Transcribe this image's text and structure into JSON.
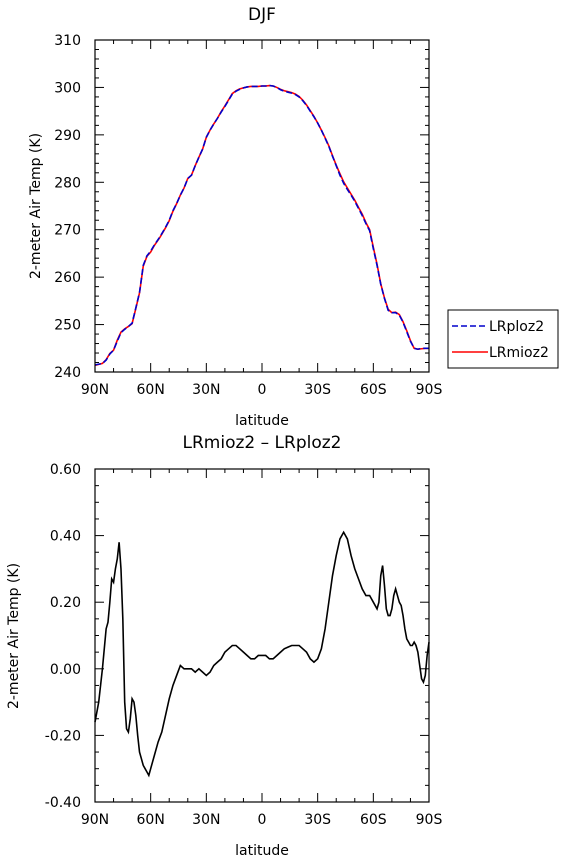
{
  "chart_data": [
    {
      "type": "line",
      "title": "DJF",
      "xlabel": "latitude",
      "ylabel": "2-meter Air Temp (K)",
      "xlim": [
        -90,
        90
      ],
      "ylim": [
        240,
        310
      ],
      "x_ticks": [
        -90,
        -60,
        -30,
        0,
        30,
        60,
        90
      ],
      "x_tick_labels": [
        "90N",
        "60N",
        "30N",
        "0",
        "30S",
        "60S",
        "90S"
      ],
      "y_ticks": [
        240,
        250,
        260,
        270,
        280,
        290,
        300,
        310
      ],
      "y_tick_labels": [
        "240",
        "250",
        "260",
        "270",
        "280",
        "290",
        "300",
        "310"
      ],
      "legend_position": "right",
      "series": [
        {
          "name": "LRploz2",
          "color": "#0000cc",
          "style": "dashed",
          "x": [
            -90,
            -86,
            -84,
            -82,
            -80,
            -78,
            -76,
            -74,
            -72,
            -70,
            -68,
            -66,
            -64,
            -62,
            -60,
            -58,
            -55,
            -52,
            -50,
            -48,
            -46,
            -44,
            -42,
            -40,
            -38,
            -36,
            -34,
            -32,
            -30,
            -28,
            -26,
            -24,
            -22,
            -20,
            -18,
            -16,
            -14,
            -12,
            -10,
            -8,
            -6,
            -4,
            -2,
            0,
            2,
            4,
            6,
            8,
            10,
            12,
            14,
            16,
            18,
            20,
            22,
            24,
            26,
            28,
            30,
            32,
            34,
            36,
            38,
            40,
            42,
            44,
            46,
            48,
            50,
            52,
            54,
            56,
            58,
            60,
            62,
            64,
            66,
            68,
            70,
            72,
            74,
            76,
            78,
            80,
            82,
            84,
            86,
            88,
            90
          ],
          "y": [
            241.5,
            241.8,
            242.5,
            243.8,
            244.6,
            246.5,
            248.3,
            249.0,
            249.6,
            250.3,
            253.5,
            256.8,
            262.5,
            264.5,
            265.5,
            266.8,
            268.5,
            270.5,
            272.0,
            274.0,
            275.5,
            277.3,
            278.8,
            280.8,
            281.5,
            283.5,
            285.3,
            287.0,
            289.5,
            291.0,
            292.3,
            293.5,
            294.8,
            296.0,
            297.3,
            298.6,
            299.2,
            299.6,
            299.9,
            300.1,
            300.2,
            300.2,
            300.2,
            300.3,
            300.3,
            300.4,
            300.3,
            300.0,
            299.5,
            299.2,
            299.0,
            298.8,
            298.5,
            298.0,
            297.2,
            296.2,
            295.0,
            293.8,
            292.5,
            291.0,
            289.3,
            287.6,
            285.5,
            283.5,
            281.5,
            279.8,
            278.5,
            277.3,
            276.0,
            274.5,
            273.0,
            271.3,
            269.8,
            266.0,
            262.5,
            258.5,
            255.5,
            253.0,
            252.5,
            252.5,
            252.0,
            250.5,
            248.5,
            246.5,
            245.0,
            244.8,
            245.0,
            245.0,
            245.0
          ]
        },
        {
          "name": "LRmioz2",
          "color": "#ff0000",
          "style": "solid",
          "x": [
            -90,
            -86,
            -84,
            -82,
            -80,
            -78,
            -76,
            -74,
            -72,
            -70,
            -68,
            -66,
            -64,
            -62,
            -60,
            -58,
            -55,
            -52,
            -50,
            -48,
            -46,
            -44,
            -42,
            -40,
            -38,
            -36,
            -34,
            -32,
            -30,
            -28,
            -26,
            -24,
            -22,
            -20,
            -18,
            -16,
            -14,
            -12,
            -10,
            -8,
            -6,
            -4,
            -2,
            0,
            2,
            4,
            6,
            8,
            10,
            12,
            14,
            16,
            18,
            20,
            22,
            24,
            26,
            28,
            30,
            32,
            34,
            36,
            38,
            40,
            42,
            44,
            46,
            48,
            50,
            52,
            54,
            56,
            58,
            60,
            62,
            64,
            66,
            68,
            70,
            72,
            74,
            76,
            78,
            80,
            82,
            84,
            86,
            88,
            90
          ],
          "y": [
            241.4,
            241.8,
            242.6,
            243.9,
            244.6,
            246.7,
            248.4,
            249.1,
            249.6,
            250.2,
            253.4,
            256.7,
            262.3,
            264.4,
            265.3,
            266.7,
            268.4,
            270.4,
            271.9,
            273.9,
            275.5,
            277.3,
            278.8,
            280.8,
            281.5,
            283.5,
            285.3,
            287.0,
            289.5,
            291.0,
            292.3,
            293.5,
            294.9,
            296.1,
            297.4,
            298.7,
            299.3,
            299.7,
            299.9,
            300.1,
            300.2,
            300.2,
            300.2,
            300.3,
            300.3,
            300.4,
            300.3,
            300.0,
            299.6,
            299.3,
            299.1,
            298.9,
            298.6,
            298.1,
            297.3,
            296.3,
            295.1,
            293.9,
            292.5,
            291.0,
            289.4,
            287.7,
            285.6,
            283.6,
            281.8,
            280.1,
            278.8,
            277.5,
            276.2,
            274.7,
            273.3,
            271.5,
            270.0,
            266.3,
            262.7,
            258.6,
            255.6,
            253.2,
            252.5,
            252.6,
            252.1,
            250.6,
            248.7,
            246.6,
            245.0,
            244.8,
            244.9,
            245.0,
            245.0
          ]
        }
      ]
    },
    {
      "type": "line",
      "title": "LRmioz2 – LRploz2",
      "xlabel": "latitude",
      "ylabel": "2-meter Air Temp (K)",
      "xlim": [
        -90,
        90
      ],
      "ylim": [
        -0.4,
        0.6
      ],
      "x_ticks": [
        -90,
        -60,
        -30,
        0,
        30,
        60,
        90
      ],
      "x_tick_labels": [
        "90N",
        "60N",
        "30N",
        "0",
        "30S",
        "60S",
        "90S"
      ],
      "y_ticks": [
        -0.4,
        -0.2,
        0.0,
        0.2,
        0.4,
        0.6
      ],
      "y_tick_labels": [
        "-0.40",
        "-0.20",
        "0.00",
        "0.20",
        "0.40",
        "0.60"
      ],
      "series": [
        {
          "color": "#000000",
          "style": "solid",
          "x": [
            -90,
            -88,
            -86,
            -84,
            -83,
            -82,
            -81,
            -80,
            -79,
            -78,
            -77,
            -76,
            -75,
            -74,
            -73,
            -72,
            -71,
            -70,
            -69,
            -68,
            -67,
            -66,
            -65,
            -64,
            -63,
            -62,
            -61,
            -60,
            -59,
            -58,
            -56,
            -54,
            -52,
            -50,
            -48,
            -46,
            -44,
            -42,
            -40,
            -38,
            -36,
            -34,
            -32,
            -30,
            -28,
            -26,
            -24,
            -22,
            -20,
            -18,
            -16,
            -14,
            -12,
            -10,
            -8,
            -6,
            -4,
            -2,
            0,
            2,
            4,
            6,
            8,
            10,
            12,
            14,
            16,
            18,
            20,
            22,
            24,
            26,
            28,
            30,
            32,
            34,
            36,
            38,
            40,
            42,
            44,
            46,
            48,
            50,
            52,
            54,
            56,
            58,
            60,
            62,
            63,
            64,
            65,
            66,
            67,
            68,
            69,
            70,
            71,
            72,
            73,
            74,
            75,
            76,
            77,
            78,
            79,
            80,
            81,
            82,
            83,
            84,
            85,
            86,
            87,
            88,
            89,
            90
          ],
          "y": [
            -0.16,
            -0.1,
            -0.0,
            0.12,
            0.14,
            0.2,
            0.27,
            0.26,
            0.3,
            0.33,
            0.38,
            0.3,
            0.15,
            -0.1,
            -0.18,
            -0.19,
            -0.15,
            -0.09,
            -0.1,
            -0.14,
            -0.2,
            -0.25,
            -0.27,
            -0.29,
            -0.3,
            -0.31,
            -0.32,
            -0.3,
            -0.28,
            -0.26,
            -0.22,
            -0.19,
            -0.14,
            -0.09,
            -0.05,
            -0.02,
            0.01,
            0.0,
            0.0,
            0.0,
            -0.01,
            -0.0,
            -0.01,
            -0.02,
            -0.01,
            0.01,
            0.02,
            0.03,
            0.05,
            0.06,
            0.07,
            0.07,
            0.06,
            0.05,
            0.04,
            0.03,
            0.03,
            0.04,
            0.04,
            0.04,
            0.03,
            0.03,
            0.04,
            0.05,
            0.06,
            0.065,
            0.07,
            0.07,
            0.07,
            0.06,
            0.05,
            0.03,
            0.02,
            0.03,
            0.06,
            0.12,
            0.2,
            0.28,
            0.34,
            0.39,
            0.41,
            0.39,
            0.34,
            0.3,
            0.27,
            0.24,
            0.22,
            0.22,
            0.2,
            0.18,
            0.2,
            0.28,
            0.31,
            0.25,
            0.18,
            0.16,
            0.16,
            0.18,
            0.22,
            0.24,
            0.22,
            0.2,
            0.19,
            0.16,
            0.12,
            0.09,
            0.08,
            0.07,
            0.07,
            0.08,
            0.07,
            0.05,
            0.01,
            -0.03,
            -0.04,
            -0.02,
            0.04,
            0.08
          ]
        }
      ]
    }
  ]
}
